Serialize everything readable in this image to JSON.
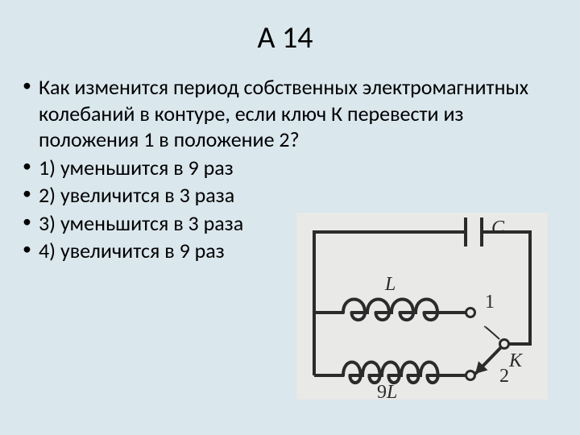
{
  "title": "А 14",
  "question": "Как изменится период собственных электромагнитных колебаний в контуре, если ключ К перевести из положения 1 в положение 2?",
  "options": [
    "1) уменьшится в 9 раз",
    "2) увеличится в 3 раза",
    "3) уменьшится в 3 раза",
    "4) увеличится в 9 раз"
  ],
  "diagram": {
    "bg_color": "#e9e9e7",
    "stroke_color": "#2b2b2b",
    "stroke_width": 4,
    "labels": {
      "capacitor": "C",
      "inductor_top": "L",
      "inductor_bottom": "9L",
      "switch": "K",
      "pos1": "1",
      "pos2": "2"
    },
    "label_font": "italic 22px 'Times New Roman', serif",
    "label_font_plain": "22px 'Times New Roman', serif",
    "node_fill": "#e9e9e7",
    "node_stroke": "#2b2b2b",
    "arrow_fill": "#2b2b2b"
  },
  "colors": {
    "slide_bg": "#dae7ed",
    "text": "#000000"
  }
}
